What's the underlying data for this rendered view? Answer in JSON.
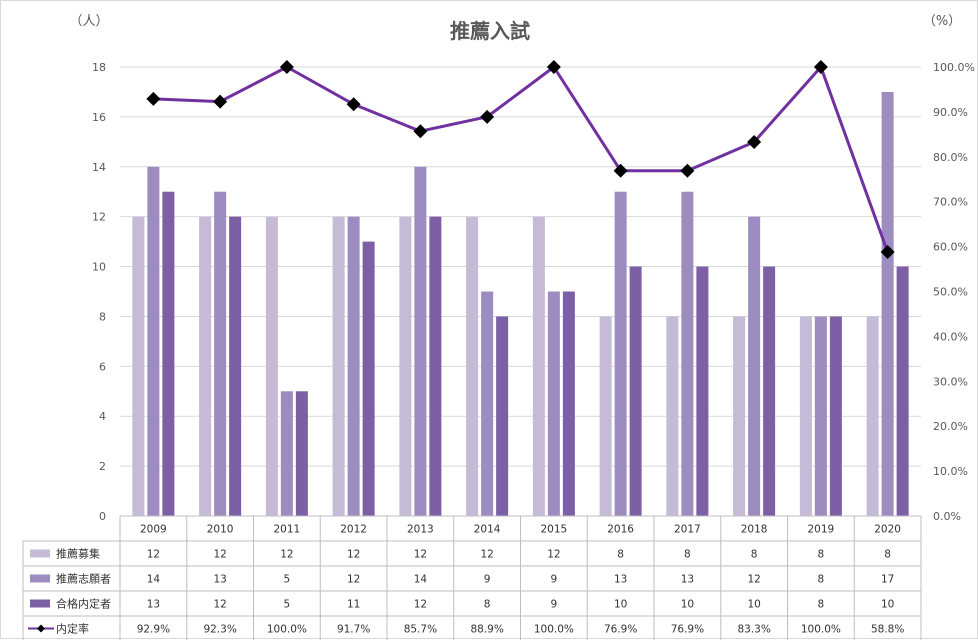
{
  "chart_data": {
    "type": "bar",
    "title": "推薦入試",
    "left_unit": "（人）",
    "right_unit": "（%）",
    "categories": [
      "2009",
      "2010",
      "2011",
      "2012",
      "2013",
      "2014",
      "2015",
      "2016",
      "2017",
      "2018",
      "2019",
      "2020"
    ],
    "left_ylim": [
      0,
      18
    ],
    "left_yticks": [
      "0",
      "2",
      "4",
      "6",
      "8",
      "10",
      "12",
      "14",
      "16",
      "18"
    ],
    "right_ylim": [
      0,
      100
    ],
    "right_yticks": [
      "0.0%",
      "10.0%",
      "20.0%",
      "30.0%",
      "40.0%",
      "50.0%",
      "60.0%",
      "70.0%",
      "80.0%",
      "90.0%",
      "100.0%"
    ],
    "grid": true,
    "legend_placement": "data-table",
    "series": [
      {
        "name": "推薦募集",
        "type": "bar",
        "axis": "left",
        "color": "#c5bbd6",
        "values": [
          12,
          12,
          12,
          12,
          12,
          12,
          12,
          8,
          8,
          8,
          8,
          8
        ],
        "labels": [
          "12",
          "12",
          "12",
          "12",
          "12",
          "12",
          "12",
          "8",
          "8",
          "8",
          "8",
          "8"
        ]
      },
      {
        "name": "推薦志願者",
        "type": "bar",
        "axis": "left",
        "color": "#9d8cbf",
        "values": [
          14,
          13,
          5,
          12,
          14,
          9,
          9,
          13,
          13,
          12,
          8,
          17
        ],
        "labels": [
          "14",
          "13",
          "5",
          "12",
          "14",
          "9",
          "9",
          "13",
          "13",
          "12",
          "8",
          "17"
        ]
      },
      {
        "name": "合格内定者",
        "type": "bar",
        "axis": "left",
        "color": "#7c5fa4",
        "values": [
          13,
          12,
          5,
          11,
          12,
          8,
          9,
          10,
          10,
          10,
          8,
          10
        ],
        "labels": [
          "13",
          "12",
          "5",
          "11",
          "12",
          "8",
          "9",
          "10",
          "10",
          "10",
          "8",
          "10"
        ]
      },
      {
        "name": "内定率",
        "type": "line",
        "axis": "right",
        "color": "#7030a0",
        "marker_color": "#000000",
        "values": [
          92.9,
          92.3,
          100.0,
          91.7,
          85.7,
          88.9,
          100.0,
          76.9,
          76.9,
          83.3,
          100.0,
          58.8
        ],
        "labels": [
          "92.9%",
          "92.3%",
          "100.0%",
          "91.7%",
          "85.7%",
          "88.9%",
          "100.0%",
          "76.9%",
          "76.9%",
          "83.3%",
          "100.0%",
          "58.8%"
        ]
      }
    ]
  }
}
